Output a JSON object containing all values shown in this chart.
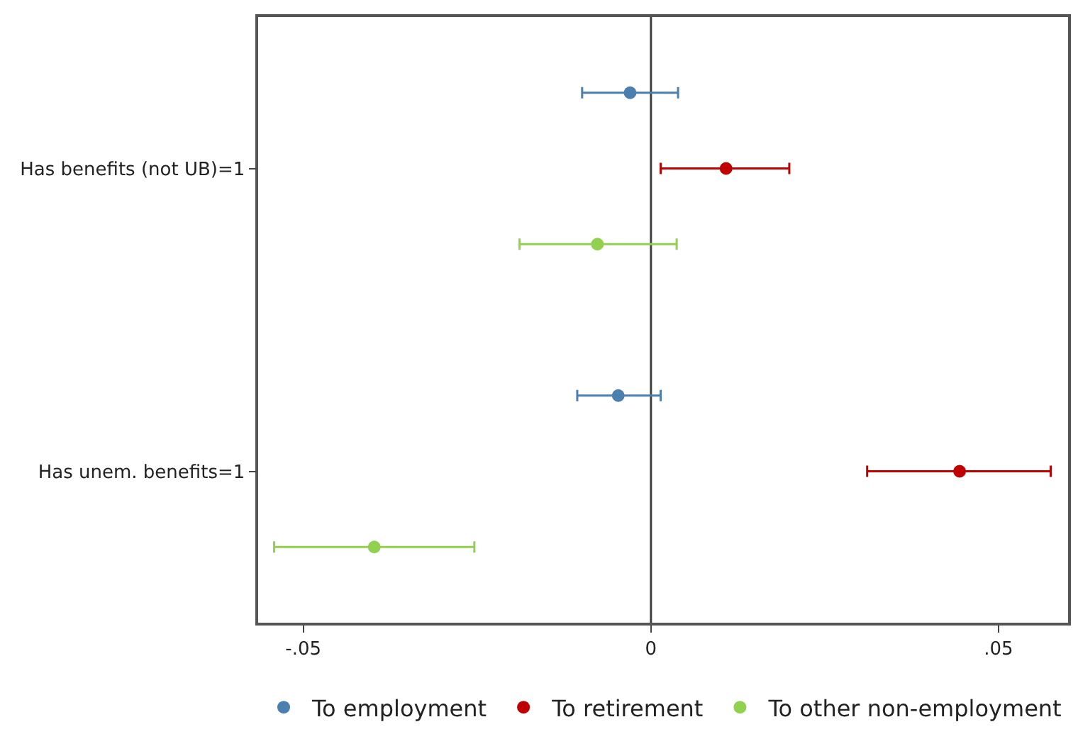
{
  "chart_data": {
    "type": "scatter",
    "orientation": "horizontal",
    "categories": [
      "Has benefits (not UB)=1",
      "Has unem. benefits=1"
    ],
    "series": [
      {
        "name": "To employment",
        "color": "#4a7fb0",
        "values": [
          -0.003,
          -0.0047
        ],
        "errors": [
          [
            -0.0099,
            0.0039
          ],
          [
            -0.0106,
            0.0014
          ]
        ]
      },
      {
        "name": "To retirement",
        "color": "#c00000",
        "values": [
          0.0108,
          0.0444
        ],
        "errors": [
          [
            0.0014,
            0.0199
          ],
          [
            0.0311,
            0.0575
          ]
        ]
      },
      {
        "name": "To other non-employment",
        "color": "#92d050",
        "values": [
          -0.0077,
          -0.0398
        ],
        "errors": [
          [
            -0.0189,
            0.0037
          ],
          [
            -0.0542,
            -0.0254
          ]
        ]
      }
    ],
    "xlim": [
      -0.0565,
      0.06
    ],
    "xticks": [
      {
        "value": -0.05,
        "label": "-.05"
      },
      0,
      {
        "value": 0.05,
        "label": ".05"
      }
    ],
    "ref_lines": [
      {
        "axis": "x",
        "value": 0,
        "color": "#404040"
      }
    ],
    "grid": false,
    "legend": "bottom",
    "marker": "circle"
  }
}
